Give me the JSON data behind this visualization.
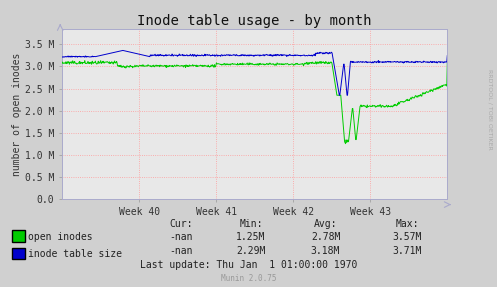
{
  "title": "Inode table usage - by month",
  "ylabel": "number of open inodes",
  "background_color": "#d0d0d0",
  "plot_bg_color": "#e8e8e8",
  "grid_color": "#ff9999",
  "x_tick_labels": [
    "Week 40",
    "Week 41",
    "Week 42",
    "Week 43"
  ],
  "ytick_labels": [
    "0.0",
    "0.5 M",
    "1.0 M",
    "1.5 M",
    "2.0 M",
    "2.5 M",
    "3.0 M",
    "3.5 M"
  ],
  "ytick_vals": [
    0,
    500000,
    1000000,
    1500000,
    2000000,
    2500000,
    3000000,
    3500000
  ],
  "ylim_max": 3850000,
  "legend": [
    {
      "label": "open inodes",
      "color": "#00cc00"
    },
    {
      "label": "inode table size",
      "color": "#0000cc"
    }
  ],
  "open_inodes_cur": "-nan",
  "open_inodes_min": "1.25M",
  "open_inodes_avg": "2.78M",
  "open_inodes_max": "3.57M",
  "inode_table_cur": "-nan",
  "inode_table_min": "2.29M",
  "inode_table_avg": "3.18M",
  "inode_table_max": "3.71M",
  "last_update": "Last update: Thu Jan  1 01:00:00 1970",
  "munin_version": "Munin 2.0.75",
  "rrdtool_credit": "RRDTOOL / TOBI OETIKER",
  "title_fontsize": 10,
  "axis_label_fontsize": 7,
  "tick_fontsize": 7,
  "legend_fontsize": 7,
  "footer_fontsize": 7
}
